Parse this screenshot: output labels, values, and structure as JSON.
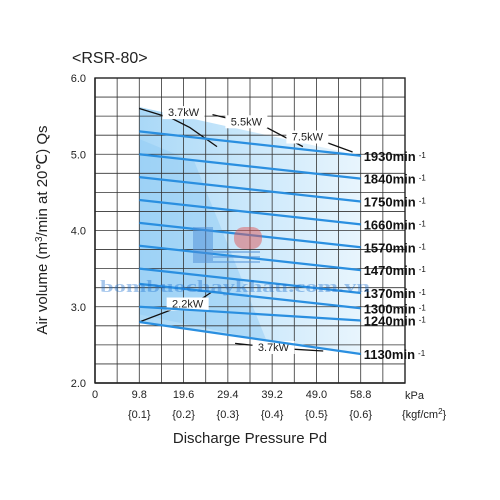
{
  "chart_data": {
    "type": "line",
    "title": "<RSR-80>",
    "xlabel": "Discharge Pressure Pd",
    "ylabel_main": "Air volume (m",
    "ylabel_sup": "3",
    "ylabel_rest": "/min at 20℃) Qs",
    "x_unit": "kPa",
    "x_unit2_main": "{kgf/cm",
    "x_unit2_sup": "2",
    "x_unit2_end": "}",
    "xlim": [
      0,
      68.6
    ],
    "ylim": [
      2.0,
      6.0
    ],
    "x_ticks": [
      "0",
      "9.8",
      "19.6",
      "29.4",
      "39.2",
      "49.0",
      "58.8"
    ],
    "x_ticks_kgf": [
      "{0.1}",
      "{0.2}",
      "{0.3}",
      "{0.4}",
      "{0.5}",
      "{0.6}"
    ],
    "y_ticks": [
      "2.0",
      "3.0",
      "4.0",
      "5.0",
      "6.0"
    ],
    "grid": true,
    "series": [
      {
        "name": "1930min",
        "points": [
          [
            9.8,
            5.3
          ],
          [
            58.8,
            4.98
          ]
        ]
      },
      {
        "name": "1840min",
        "points": [
          [
            9.8,
            5.0
          ],
          [
            58.8,
            4.68
          ]
        ]
      },
      {
        "name": "1750min",
        "points": [
          [
            9.8,
            4.7
          ],
          [
            58.8,
            4.38
          ]
        ]
      },
      {
        "name": "1660min",
        "points": [
          [
            9.8,
            4.4
          ],
          [
            58.8,
            4.08
          ]
        ]
      },
      {
        "name": "1570min",
        "points": [
          [
            9.8,
            4.1
          ],
          [
            58.8,
            3.78
          ]
        ]
      },
      {
        "name": "1470min",
        "points": [
          [
            9.8,
            3.8
          ],
          [
            58.8,
            3.48
          ]
        ]
      },
      {
        "name": "1370min",
        "points": [
          [
            9.8,
            3.5
          ],
          [
            58.8,
            3.18
          ]
        ]
      },
      {
        "name": "1300min",
        "points": [
          [
            9.8,
            3.3
          ],
          [
            58.8,
            2.98
          ]
        ]
      },
      {
        "name": "1240min",
        "points": [
          [
            9.8,
            3.0
          ],
          [
            58.8,
            2.82
          ]
        ]
      },
      {
        "name": "1130min",
        "points": [
          [
            9.8,
            2.8
          ],
          [
            58.8,
            2.38
          ]
        ]
      }
    ],
    "rpm_suffix": "-1",
    "power_lines": [
      {
        "label": "3.7kW",
        "label_at": [
          19.6,
          5.5
        ],
        "points": [
          [
            9.8,
            5.6
          ],
          [
            17.0,
            5.47
          ],
          [
            21.0,
            5.35
          ],
          [
            27.0,
            5.1
          ]
        ]
      },
      {
        "label": "5.5kW",
        "label_at": [
          33.5,
          5.38
        ],
        "points": [
          [
            26.0,
            5.52
          ],
          [
            38.0,
            5.35
          ],
          [
            46.0,
            5.1
          ]
        ]
      },
      {
        "label": "7.5kW",
        "label_at": [
          47.0,
          5.18
        ],
        "points": [
          [
            44.0,
            5.28
          ],
          [
            50.5,
            5.17
          ],
          [
            57.0,
            5.03
          ]
        ]
      },
      {
        "label": "2.2kW",
        "label_at": [
          20.5,
          2.99
        ],
        "points": [
          [
            9.8,
            2.8
          ],
          [
            24.0,
            3.12
          ],
          [
            26.0,
            3.2
          ]
        ]
      },
      {
        "label": "3.7kW",
        "label_at": [
          39.5,
          2.42
        ],
        "points": [
          [
            31.0,
            2.52
          ],
          [
            42.0,
            2.45
          ],
          [
            50.5,
            2.42
          ]
        ]
      }
    ],
    "accent_color": "#2a8fe0",
    "region_color": "#c8e6fb",
    "watermark": "bombuochaykhau.com.vn"
  }
}
